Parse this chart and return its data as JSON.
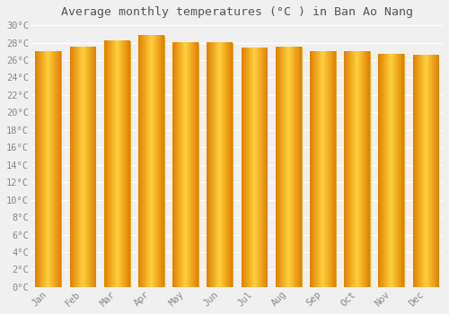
{
  "title": "Average monthly temperatures (°C ) in Ban Ao Nang",
  "months": [
    "Jan",
    "Feb",
    "Mar",
    "Apr",
    "May",
    "Jun",
    "Jul",
    "Aug",
    "Sep",
    "Oct",
    "Nov",
    "Dec"
  ],
  "temperatures": [
    27.0,
    27.5,
    28.2,
    28.8,
    28.0,
    28.0,
    27.4,
    27.5,
    27.0,
    27.0,
    26.7,
    26.6
  ],
  "bar_color": "#FFB300",
  "bar_edge_color": "#E69500",
  "ylim": [
    0,
    30
  ],
  "ytick_step": 2,
  "background_color": "#f0f0f0",
  "grid_color": "#ffffff",
  "title_fontsize": 9.5,
  "tick_fontsize": 7.5,
  "font_family": "monospace",
  "tick_color": "#888888",
  "title_color": "#555555"
}
